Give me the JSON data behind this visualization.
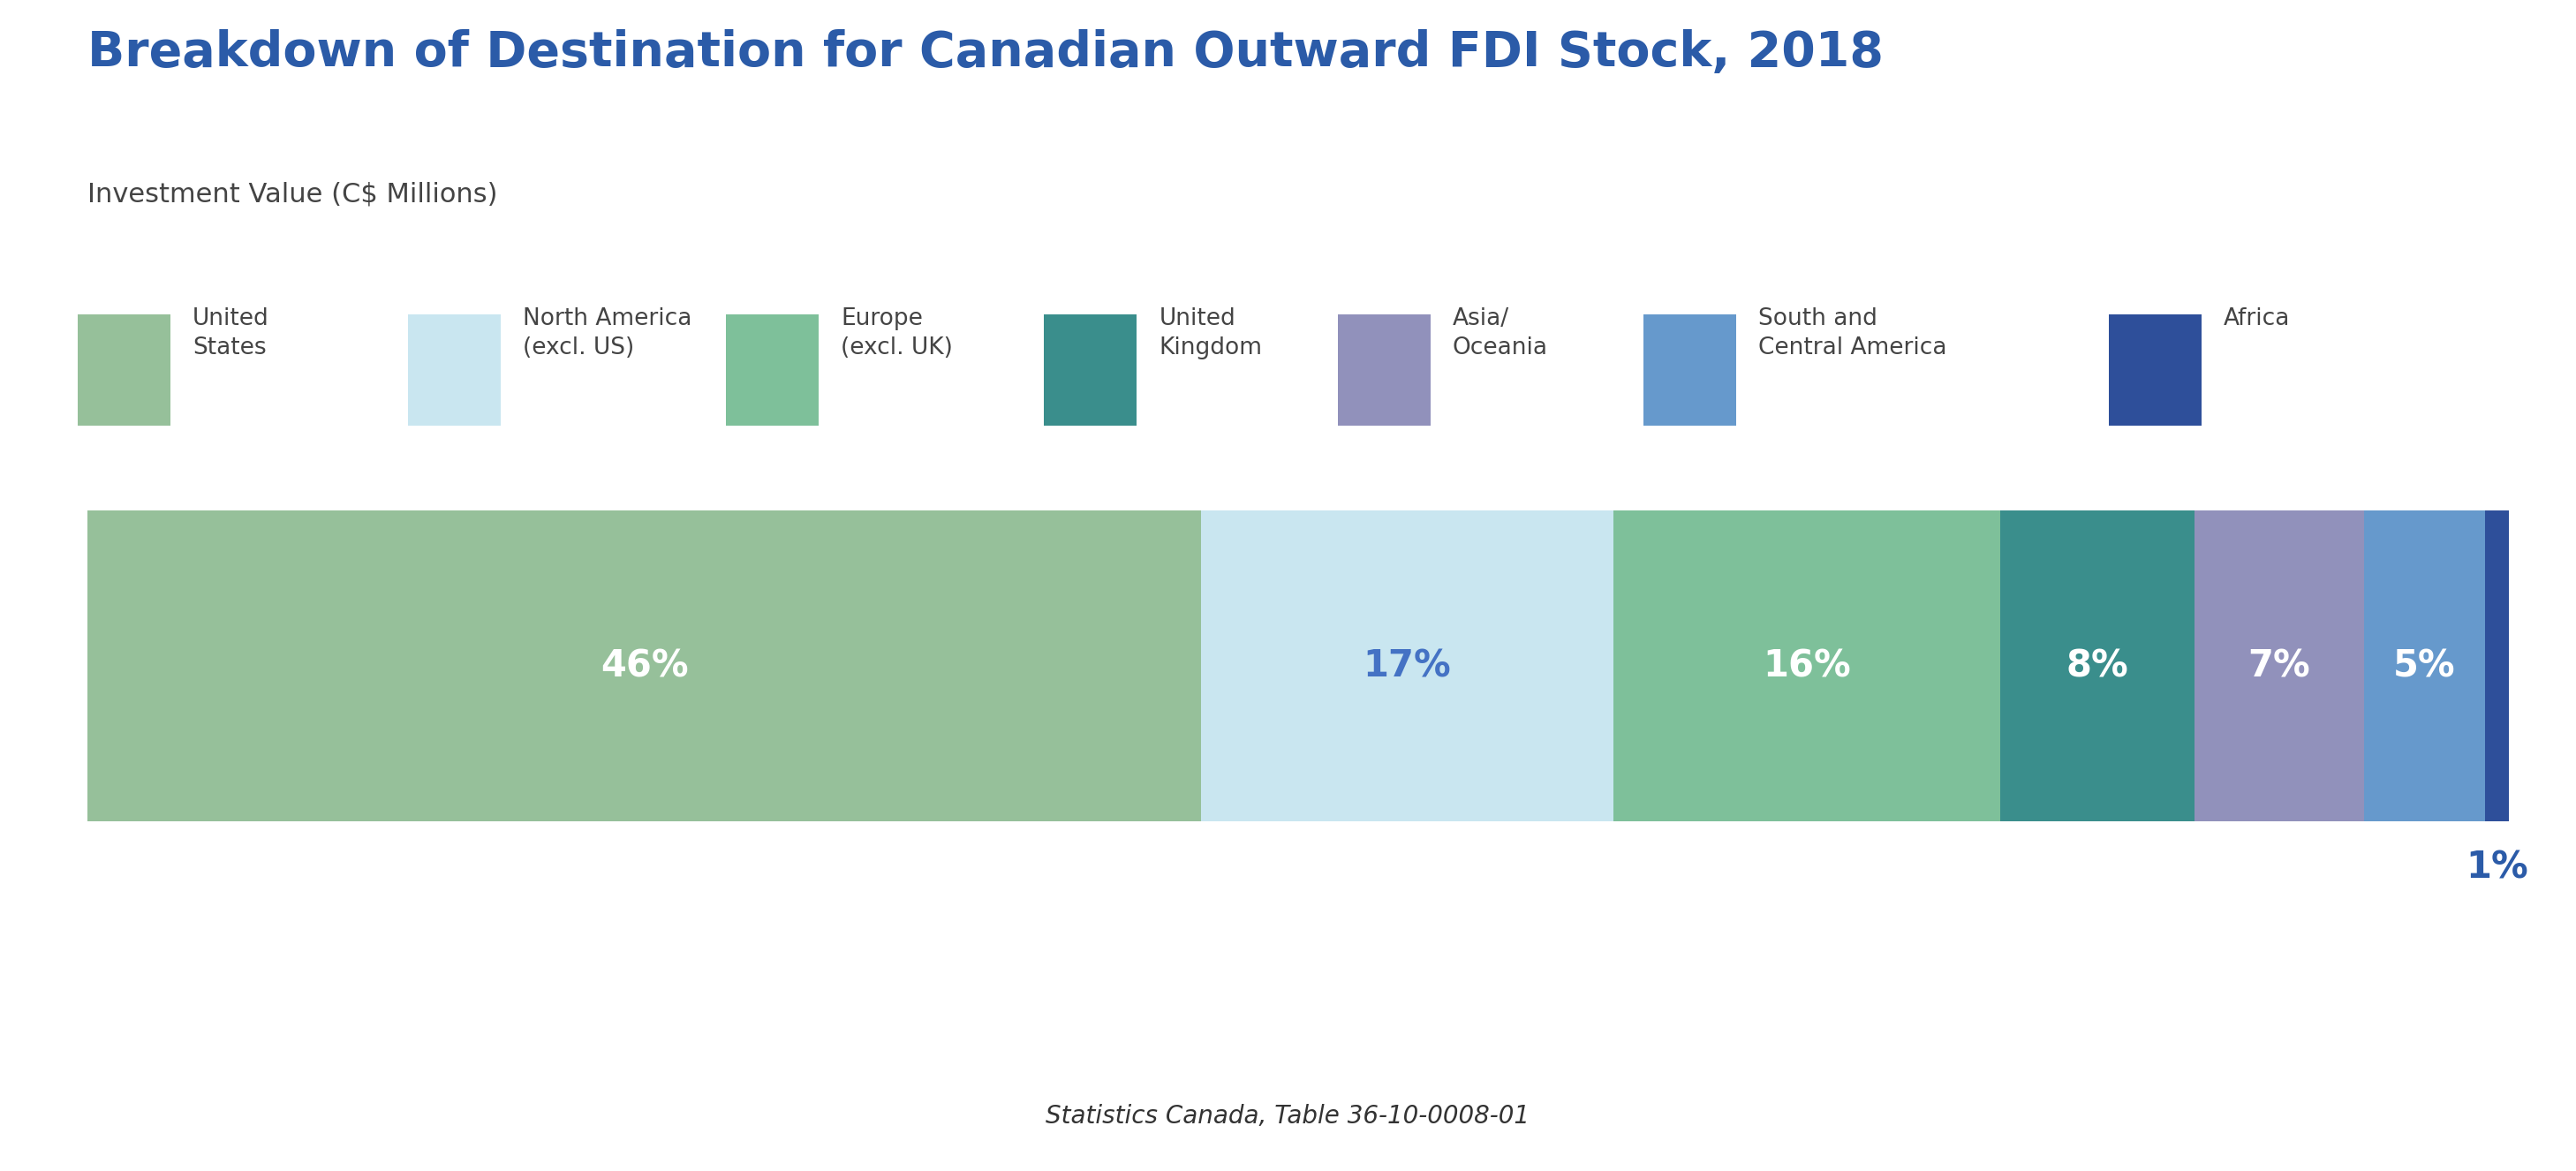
{
  "title": "Breakdown of Destination for Canadian Outward FDI Stock, 2018",
  "subtitle": "Investment Value (C$ Millions)",
  "title_color": "#2B5BA8",
  "subtitle_color": "#444444",
  "title_fontsize": 40,
  "subtitle_fontsize": 22,
  "segments": [
    {
      "label": "United\nStates",
      "pct": 46,
      "color": "#96C09A",
      "label_color": "#ffffff"
    },
    {
      "label": "North America\n(excl. US)",
      "pct": 17,
      "color": "#C9E6F0",
      "label_color": "#4472C4"
    },
    {
      "label": "Europe\n(excl. UK)",
      "pct": 16,
      "color": "#7EC09A",
      "label_color": "#ffffff"
    },
    {
      "label": "United\nKingdom",
      "pct": 8,
      "color": "#3A8E8C",
      "label_color": "#ffffff"
    },
    {
      "label": "Asia/\nOceania",
      "pct": 7,
      "color": "#9191BB",
      "label_color": "#ffffff"
    },
    {
      "label": "South and\nCentral America",
      "pct": 5,
      "color": "#6699CC",
      "label_color": "#ffffff"
    },
    {
      "label": "Africa",
      "pct": 1,
      "color": "#2E4F9A",
      "label_color": "#4472C4"
    }
  ],
  "header_bg": "#D6EEF5",
  "chart_bg": "#FFFFFF",
  "footer_bg": "#EEEEEE",
  "footer_text": "Statistics Canada, Table 36-10-0008-01",
  "footer_fontsize": 20,
  "label_fontsize": 30,
  "legend_fontsize": 19
}
